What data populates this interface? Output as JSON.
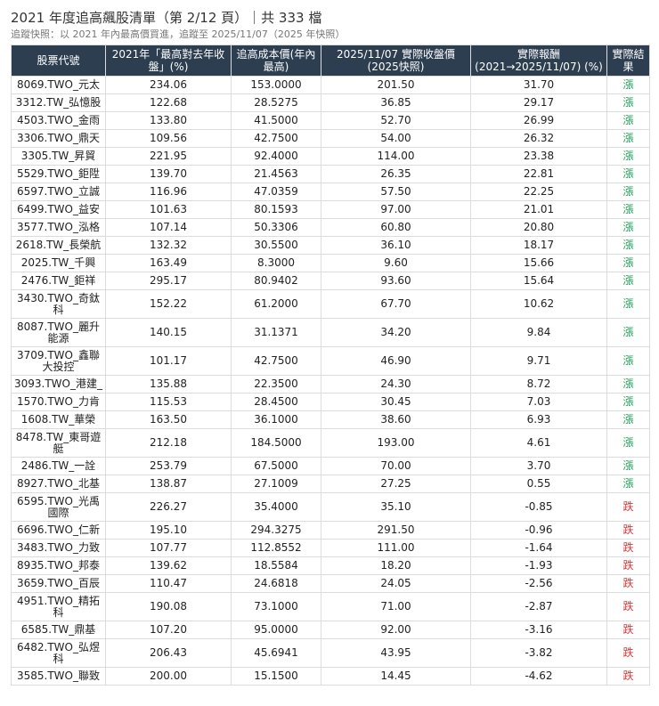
{
  "header": {
    "title": "2021 年度追高飆股清單（第 2/12 頁）｜共 333 檔",
    "subtitle": "追蹤快照：以 2021 年內最高價買進，追蹤至 2025/11/07（2025 年快照）"
  },
  "table": {
    "columns": [
      "股票代號",
      "2021年「最高對去年收盤」(%)",
      "追高成本價(年內最高)",
      "2025/11/07 實際收盤價 (2025快照)",
      "實際報酬 (2021→2025/11/07) (%)",
      "實際結果"
    ],
    "rows": [
      {
        "code": "8069.TWO_元太",
        "pct": "234.06",
        "cost": "153.0000",
        "close": "201.50",
        "ret": "31.70",
        "result": "漲",
        "dir": "up"
      },
      {
        "code": "3312.TW_弘憶股",
        "pct": "122.68",
        "cost": "28.5275",
        "close": "36.85",
        "ret": "29.17",
        "result": "漲",
        "dir": "up"
      },
      {
        "code": "4503.TWO_金雨",
        "pct": "133.80",
        "cost": "41.5000",
        "close": "52.70",
        "ret": "26.99",
        "result": "漲",
        "dir": "up"
      },
      {
        "code": "3306.TWO_鼎天",
        "pct": "109.56",
        "cost": "42.7500",
        "close": "54.00",
        "ret": "26.32",
        "result": "漲",
        "dir": "up"
      },
      {
        "code": "3305.TW_昇貿",
        "pct": "221.95",
        "cost": "92.4000",
        "close": "114.00",
        "ret": "23.38",
        "result": "漲",
        "dir": "up"
      },
      {
        "code": "5529.TWO_鉅陞",
        "pct": "139.70",
        "cost": "21.4563",
        "close": "26.35",
        "ret": "22.81",
        "result": "漲",
        "dir": "up"
      },
      {
        "code": "6597.TWO_立誠",
        "pct": "116.96",
        "cost": "47.0359",
        "close": "57.50",
        "ret": "22.25",
        "result": "漲",
        "dir": "up"
      },
      {
        "code": "6499.TWO_益安",
        "pct": "101.63",
        "cost": "80.1593",
        "close": "97.00",
        "ret": "21.01",
        "result": "漲",
        "dir": "up"
      },
      {
        "code": "3577.TWO_泓格",
        "pct": "107.14",
        "cost": "50.3306",
        "close": "60.80",
        "ret": "20.80",
        "result": "漲",
        "dir": "up"
      },
      {
        "code": "2618.TW_長榮航",
        "pct": "132.32",
        "cost": "30.5500",
        "close": "36.10",
        "ret": "18.17",
        "result": "漲",
        "dir": "up"
      },
      {
        "code": "2025.TW_千興",
        "pct": "163.49",
        "cost": "8.3000",
        "close": "9.60",
        "ret": "15.66",
        "result": "漲",
        "dir": "up"
      },
      {
        "code": "2476.TW_鉅祥",
        "pct": "295.17",
        "cost": "80.9402",
        "close": "93.60",
        "ret": "15.64",
        "result": "漲",
        "dir": "up"
      },
      {
        "code": "3430.TWO_奇鈦科",
        "pct": "152.22",
        "cost": "61.2000",
        "close": "67.70",
        "ret": "10.62",
        "result": "漲",
        "dir": "up",
        "tall": true
      },
      {
        "code": "8087.TWO_麗升能源",
        "pct": "140.15",
        "cost": "31.1371",
        "close": "34.20",
        "ret": "9.84",
        "result": "漲",
        "dir": "up",
        "tall": true
      },
      {
        "code": "3709.TWO_鑫聯大投控",
        "pct": "101.17",
        "cost": "42.7500",
        "close": "46.90",
        "ret": "9.71",
        "result": "漲",
        "dir": "up",
        "tall": true
      },
      {
        "code": "3093.TWO_港建_",
        "pct": "135.88",
        "cost": "22.3500",
        "close": "24.30",
        "ret": "8.72",
        "result": "漲",
        "dir": "up"
      },
      {
        "code": "1570.TWO_力肯",
        "pct": "115.53",
        "cost": "28.4500",
        "close": "30.45",
        "ret": "7.03",
        "result": "漲",
        "dir": "up"
      },
      {
        "code": "1608.TW_華榮",
        "pct": "163.50",
        "cost": "36.1000",
        "close": "38.60",
        "ret": "6.93",
        "result": "漲",
        "dir": "up"
      },
      {
        "code": "8478.TW_東哥遊艇",
        "pct": "212.18",
        "cost": "184.5000",
        "close": "193.00",
        "ret": "4.61",
        "result": "漲",
        "dir": "up",
        "tall": true
      },
      {
        "code": "2486.TW_一詮",
        "pct": "253.79",
        "cost": "67.5000",
        "close": "70.00",
        "ret": "3.70",
        "result": "漲",
        "dir": "up"
      },
      {
        "code": "8927.TWO_北基",
        "pct": "138.87",
        "cost": "27.1009",
        "close": "27.25",
        "ret": "0.55",
        "result": "漲",
        "dir": "up"
      },
      {
        "code": "6595.TWO_光禹國際",
        "pct": "226.27",
        "cost": "35.4000",
        "close": "35.10",
        "ret": "-0.85",
        "result": "跌",
        "dir": "down",
        "tall": true
      },
      {
        "code": "6696.TWO_仁新",
        "pct": "195.10",
        "cost": "294.3275",
        "close": "291.50",
        "ret": "-0.96",
        "result": "跌",
        "dir": "down"
      },
      {
        "code": "3483.TWO_力致",
        "pct": "107.77",
        "cost": "112.8552",
        "close": "111.00",
        "ret": "-1.64",
        "result": "跌",
        "dir": "down"
      },
      {
        "code": "8935.TWO_邦泰",
        "pct": "139.62",
        "cost": "18.5584",
        "close": "18.20",
        "ret": "-1.93",
        "result": "跌",
        "dir": "down"
      },
      {
        "code": "3659.TWO_百辰",
        "pct": "110.47",
        "cost": "24.6818",
        "close": "24.05",
        "ret": "-2.56",
        "result": "跌",
        "dir": "down"
      },
      {
        "code": "4951.TWO_精拓科",
        "pct": "190.08",
        "cost": "73.1000",
        "close": "71.00",
        "ret": "-2.87",
        "result": "跌",
        "dir": "down",
        "tall": true
      },
      {
        "code": "6585.TW_鼎基",
        "pct": "107.20",
        "cost": "95.0000",
        "close": "92.00",
        "ret": "-3.16",
        "result": "跌",
        "dir": "down"
      },
      {
        "code": "6482.TWO_弘煜科",
        "pct": "206.43",
        "cost": "45.6941",
        "close": "43.95",
        "ret": "-3.82",
        "result": "跌",
        "dir": "down",
        "tall": true
      },
      {
        "code": "3585.TWO_聯致",
        "pct": "200.00",
        "cost": "15.1500",
        "close": "14.45",
        "ret": "-4.62",
        "result": "跌",
        "dir": "down"
      }
    ]
  },
  "colors": {
    "header_bg": "#2d3e50",
    "up": "#1e9d57",
    "down": "#d63a3a"
  }
}
